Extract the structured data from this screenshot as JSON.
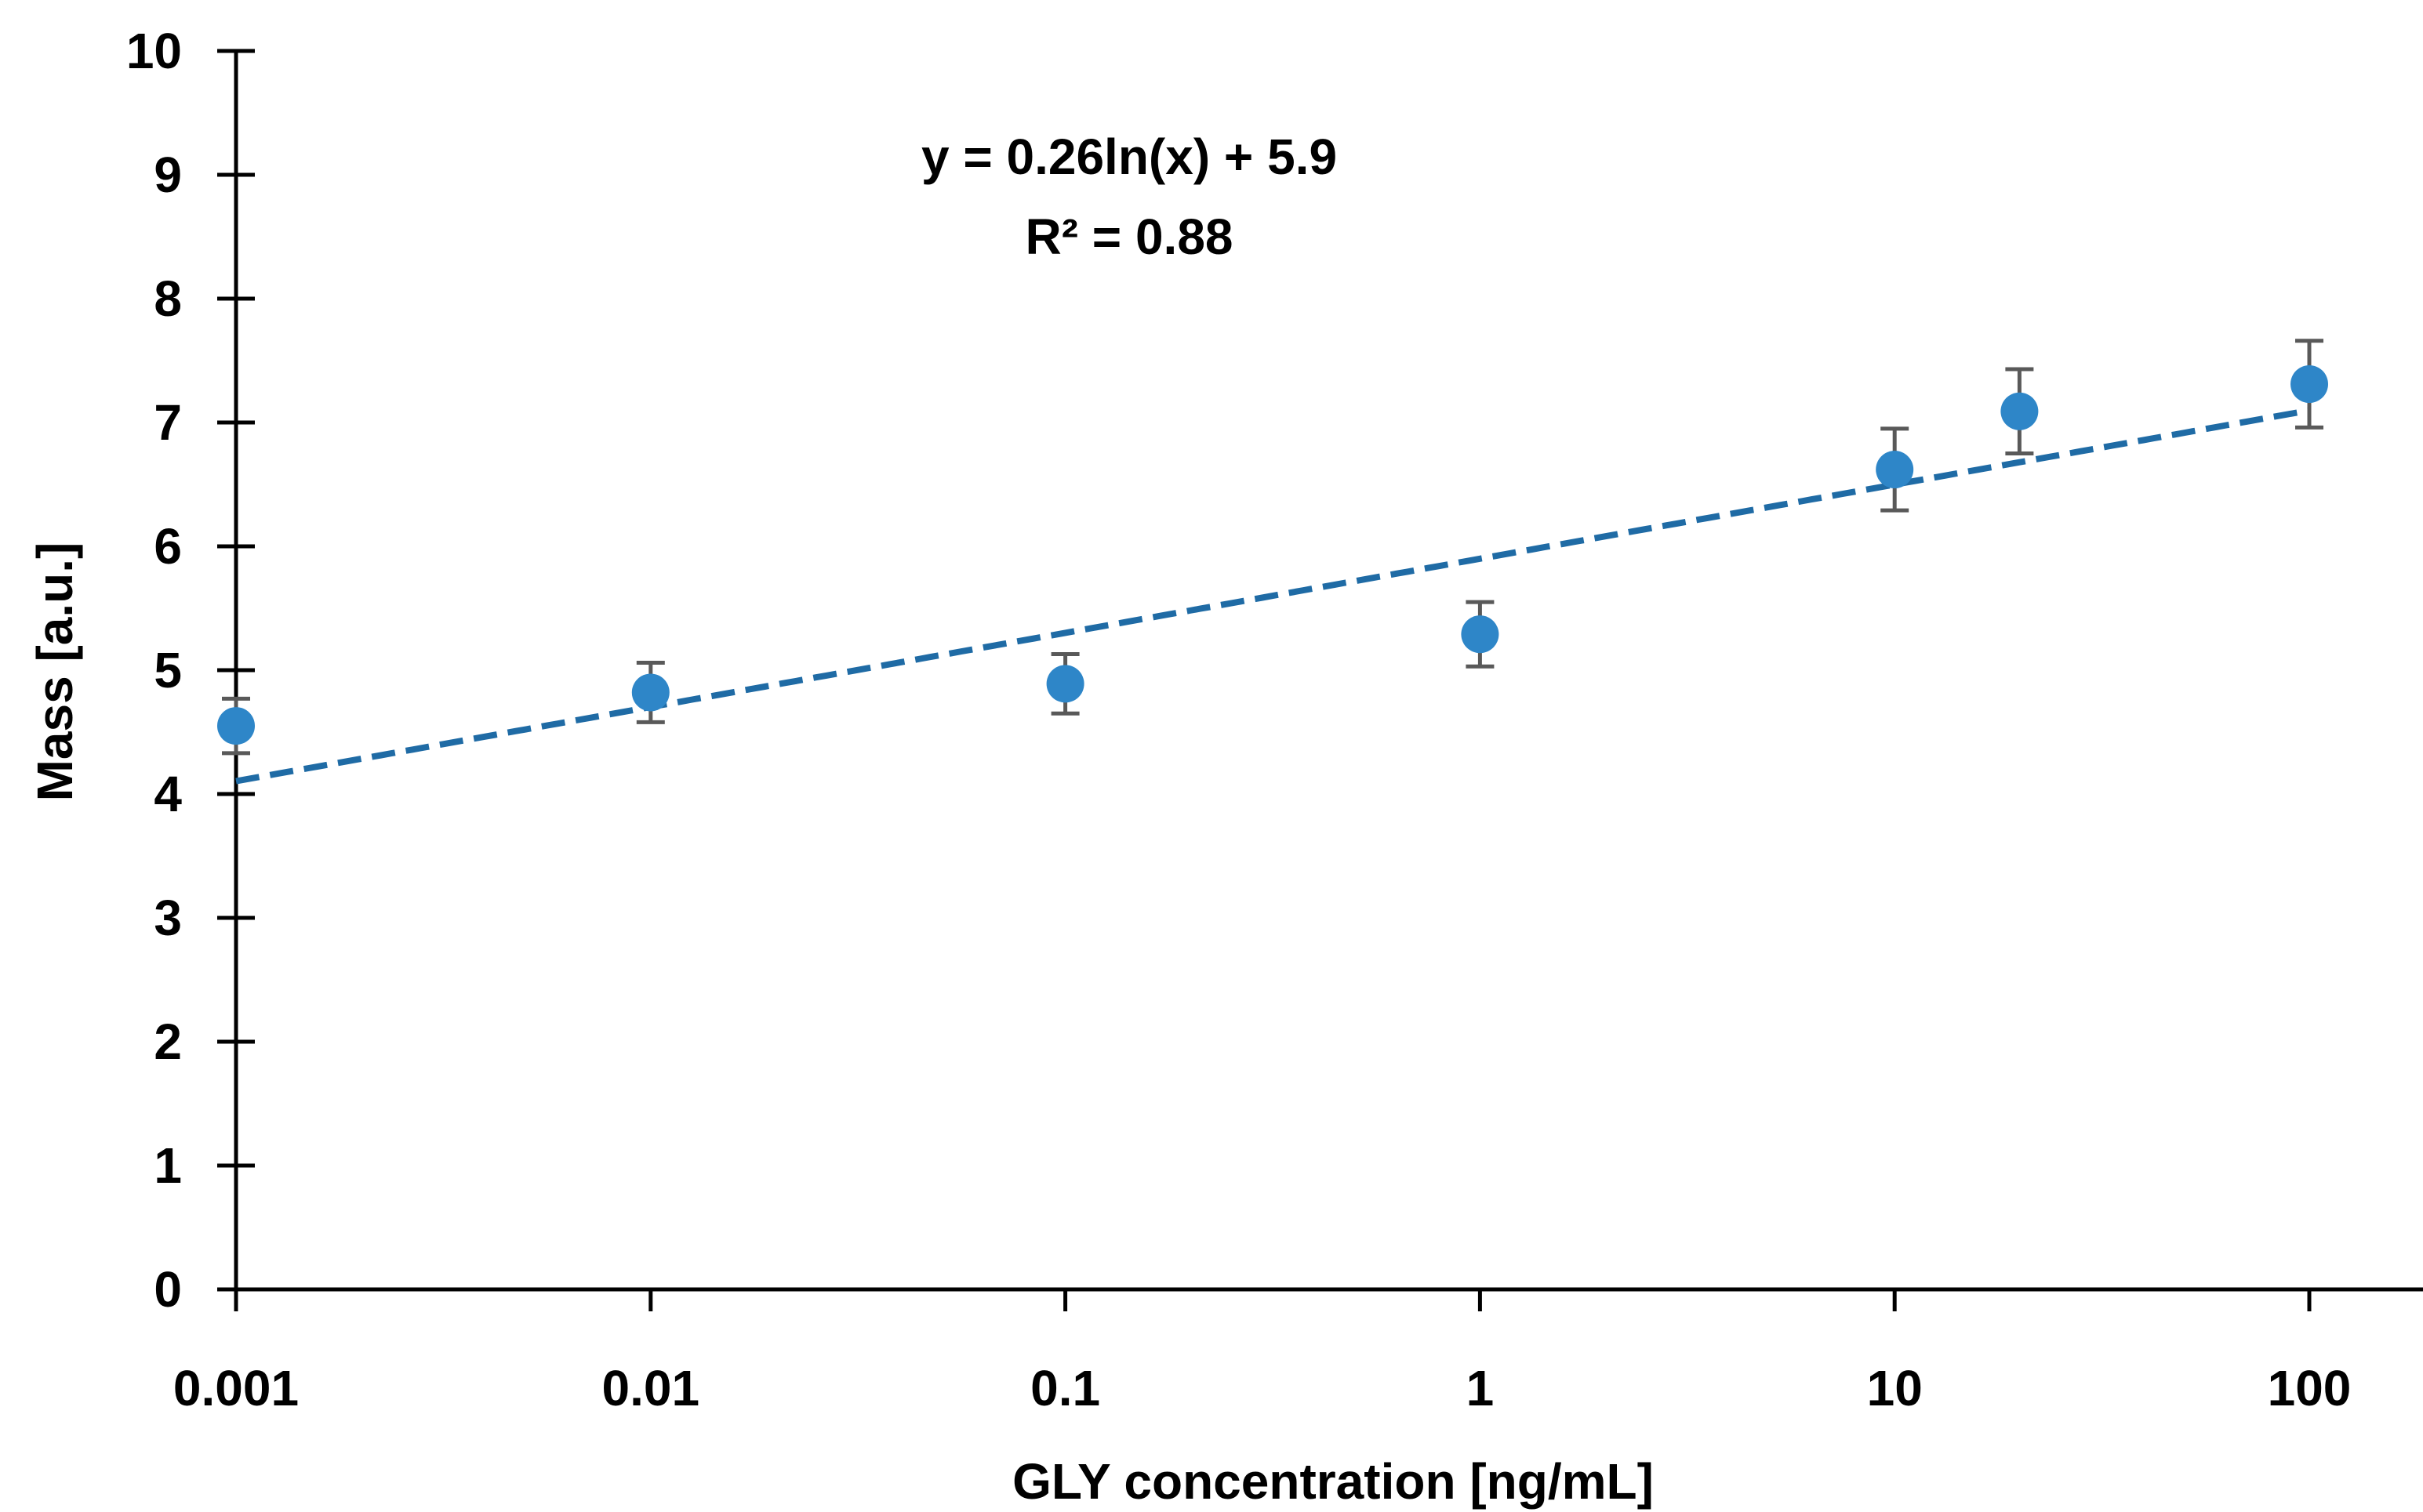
{
  "chart_data": {
    "type": "scatter",
    "title": "",
    "xlabel": "GLY concentration [ng/mL]",
    "ylabel": "Mass [a.u.]",
    "xscale": "log",
    "xlim": [
      0.001,
      100
    ],
    "ylim": [
      0,
      10
    ],
    "xticks": [
      "0.001",
      "0.01",
      "0.1",
      "1",
      "10",
      "100"
    ],
    "yticks": [
      "0",
      "1",
      "2",
      "3",
      "4",
      "5",
      "6",
      "7",
      "8",
      "9",
      "10"
    ],
    "grid": false,
    "series": [
      {
        "name": "Mass",
        "color": "#2E86C8",
        "x": [
          0.001,
          0.01,
          0.1,
          1,
          10,
          20,
          100
        ],
        "y": [
          4.55,
          4.82,
          4.89,
          5.29,
          6.62,
          7.09,
          7.31
        ],
        "error": [
          0.22,
          0.24,
          0.24,
          0.26,
          0.33,
          0.34,
          0.35
        ]
      }
    ],
    "trendline": {
      "type": "logarithmic",
      "a": 0.26,
      "b": 5.9,
      "color": "#1F6BA5",
      "style": "dashed",
      "x_range": [
        0.001,
        100
      ]
    },
    "annotations": {
      "equation": "y = 0.26ln(x) + 5.9",
      "r_squared": "R² = 0.88"
    }
  }
}
